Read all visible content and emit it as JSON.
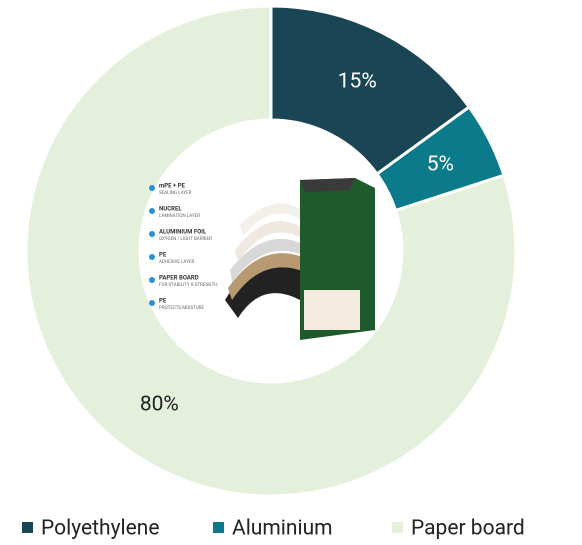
{
  "chart_data": {
    "type": "donut",
    "categories": [
      "Polyethylene",
      "Aluminium",
      "Paper board"
    ],
    "values": [
      15,
      5,
      80
    ],
    "value_labels": [
      "15%",
      "5%",
      "80%"
    ],
    "colors": [
      "#1a4555",
      "#0b7b8b",
      "#e4f0dc"
    ],
    "label_colors": [
      "#ffffff",
      "#ffffff",
      "#222222"
    ],
    "legend": "bottom"
  },
  "illustration": {
    "layers": [
      {
        "title": "mPE + PE",
        "subtitle": "SEALING LAYER"
      },
      {
        "title": "NUCREL",
        "subtitle": "LAMINATION LAYER"
      },
      {
        "title": "ALUMINIUM FOIL",
        "subtitle": "OXYGEN / LIGHT BARRIER"
      },
      {
        "title": "PE",
        "subtitle": "ADHESIVE LAYER"
      },
      {
        "title": "PAPER BOARD",
        "subtitle": "FOR STABILITY & STRENGTH"
      },
      {
        "title": "PE",
        "subtitle": "PROTECTS MOISTURE"
      }
    ]
  }
}
